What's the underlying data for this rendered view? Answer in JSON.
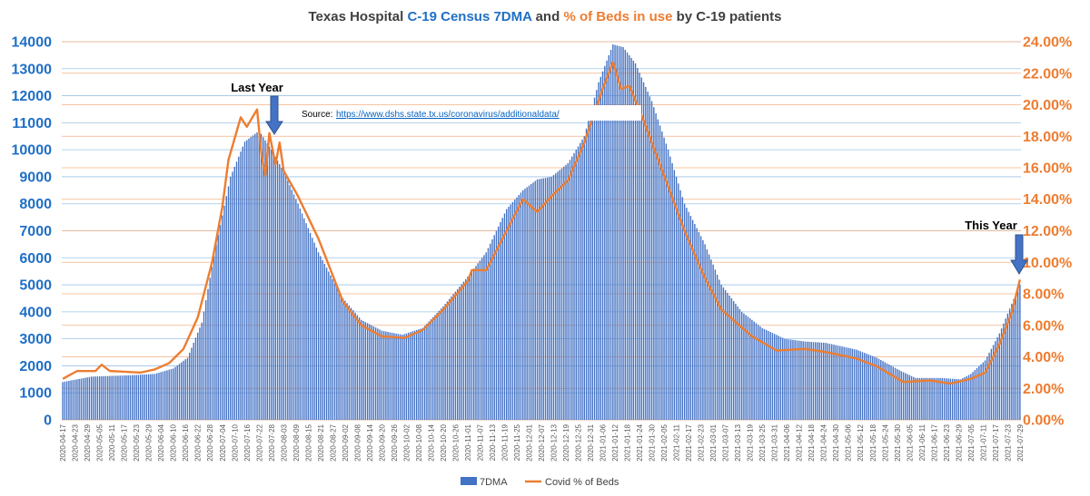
{
  "chart_data": {
    "type": "bar+line",
    "title": {
      "prefix": "Texas Hospital ",
      "series1": "C-19 Census 7DMA",
      "mid": " and ",
      "series2": "% of Beds in use",
      "suffix": " by C-19 patients"
    },
    "source_label": "Source:",
    "source_url": "https://www.dshs.state.tx.us/coronavirus/additionaldata/",
    "annotations": {
      "last_year": "Last Year",
      "this_year": "This Year"
    },
    "y_left": {
      "min": 0,
      "max": 14000,
      "step": 1000,
      "ticks": [
        "0",
        "1000",
        "2000",
        "3000",
        "4000",
        "5000",
        "6000",
        "7000",
        "8000",
        "9000",
        "10000",
        "11000",
        "12000",
        "13000",
        "14000"
      ]
    },
    "y_right": {
      "min": 0,
      "max": 24,
      "step": 2,
      "ticks": [
        "0.00%",
        "2.00%",
        "4.00%",
        "6.00%",
        "8.00%",
        "10.00%",
        "12.00%",
        "14.00%",
        "16.00%",
        "18.00%",
        "20.00%",
        "22.00%",
        "24.00%"
      ]
    },
    "x_start_date": "2020-04-17",
    "x_end_date": "2021-07-29",
    "x_tick_labels": [
      "2020-04-17",
      "2020-04-23",
      "2020-04-29",
      "2020-05-05",
      "2020-05-11",
      "2020-05-17",
      "2020-05-23",
      "2020-05-29",
      "2020-06-04",
      "2020-06-10",
      "2020-06-16",
      "2020-06-22",
      "2020-06-28",
      "2020-07-04",
      "2020-07-10",
      "2020-07-16",
      "2020-07-22",
      "2020-07-28",
      "2020-08-03",
      "2020-08-09",
      "2020-08-15",
      "2020-08-21",
      "2020-08-27",
      "2020-09-02",
      "2020-09-08",
      "2020-09-14",
      "2020-09-20",
      "2020-09-26",
      "2020-10-02",
      "2020-10-08",
      "2020-10-14",
      "2020-10-20",
      "2020-10-26",
      "2020-11-01",
      "2020-11-07",
      "2020-11-13",
      "2020-11-19",
      "2020-11-25",
      "2020-12-01",
      "2020-12-07",
      "2020-12-13",
      "2020-12-19",
      "2020-12-25",
      "2020-12-31",
      "2021-01-06",
      "2021-01-12",
      "2021-01-18",
      "2021-01-24",
      "2021-01-30",
      "2021-02-05",
      "2021-02-11",
      "2021-02-17",
      "2021-02-23",
      "2021-03-01",
      "2021-03-07",
      "2021-03-13",
      "2021-03-19",
      "2021-03-25",
      "2021-03-31",
      "2021-04-06",
      "2021-04-12",
      "2021-04-18",
      "2021-04-24",
      "2021-04-30",
      "2021-05-06",
      "2021-05-12",
      "2021-05-18",
      "2021-05-24",
      "2021-05-30",
      "2021-06-05",
      "2021-06-11",
      "2021-06-17",
      "2021-06-23",
      "2021-06-29",
      "2021-07-05",
      "2021-07-11",
      "2021-07-17",
      "2021-07-23",
      "2021-07-29"
    ],
    "series": [
      {
        "name": "7DMA",
        "type": "bar",
        "color": "#4472c4",
        "axis": "left",
        "keyframes": [
          [
            "2020-04-17",
            1400
          ],
          [
            "2020-05-01",
            1600
          ],
          [
            "2020-05-20",
            1650
          ],
          [
            "2020-06-01",
            1700
          ],
          [
            "2020-06-10",
            1900
          ],
          [
            "2020-06-17",
            2300
          ],
          [
            "2020-06-24",
            3600
          ],
          [
            "2020-07-01",
            6500
          ],
          [
            "2020-07-08",
            9000
          ],
          [
            "2020-07-15",
            10300
          ],
          [
            "2020-07-22",
            10700
          ],
          [
            "2020-07-28",
            10000
          ],
          [
            "2020-08-03",
            9200
          ],
          [
            "2020-08-10",
            8000
          ],
          [
            "2020-08-20",
            6200
          ],
          [
            "2020-09-01",
            4500
          ],
          [
            "2020-09-10",
            3700
          ],
          [
            "2020-09-20",
            3300
          ],
          [
            "2020-09-30",
            3150
          ],
          [
            "2020-10-10",
            3400
          ],
          [
            "2020-10-20",
            4200
          ],
          [
            "2020-11-01",
            5300
          ],
          [
            "2020-11-10",
            6200
          ],
          [
            "2020-11-20",
            7800
          ],
          [
            "2020-11-28",
            8500
          ],
          [
            "2020-12-05",
            8900
          ],
          [
            "2020-12-12",
            9000
          ],
          [
            "2020-12-20",
            9500
          ],
          [
            "2020-12-28",
            10500
          ],
          [
            "2021-01-04",
            12500
          ],
          [
            "2021-01-11",
            13900
          ],
          [
            "2021-01-16",
            13800
          ],
          [
            "2021-01-22",
            13200
          ],
          [
            "2021-01-30",
            11800
          ],
          [
            "2021-02-07",
            10000
          ],
          [
            "2021-02-15",
            8000
          ],
          [
            "2021-02-25",
            6500
          ],
          [
            "2021-03-05",
            5000
          ],
          [
            "2021-03-15",
            4000
          ],
          [
            "2021-03-25",
            3400
          ],
          [
            "2021-04-05",
            3000
          ],
          [
            "2021-04-15",
            2900
          ],
          [
            "2021-04-25",
            2850
          ],
          [
            "2021-05-10",
            2600
          ],
          [
            "2021-05-20",
            2300
          ],
          [
            "2021-06-01",
            1800
          ],
          [
            "2021-06-08",
            1550
          ],
          [
            "2021-06-20",
            1550
          ],
          [
            "2021-06-30",
            1500
          ],
          [
            "2021-07-05",
            1700
          ],
          [
            "2021-07-12",
            2200
          ],
          [
            "2021-07-19",
            3200
          ],
          [
            "2021-07-25",
            4300
          ],
          [
            "2021-07-29",
            5000
          ]
        ]
      },
      {
        "name": "Covid % of Beds",
        "type": "line",
        "color": "#ed7d31",
        "axis": "right",
        "keyframes": [
          [
            "2020-04-17",
            2.6
          ],
          [
            "2020-04-24",
            3.1
          ],
          [
            "2020-05-03",
            3.1
          ],
          [
            "2020-05-06",
            3.5
          ],
          [
            "2020-05-10",
            3.1
          ],
          [
            "2020-05-25",
            3.0
          ],
          [
            "2020-06-01",
            3.2
          ],
          [
            "2020-06-08",
            3.6
          ],
          [
            "2020-06-15",
            4.5
          ],
          [
            "2020-06-22",
            6.5
          ],
          [
            "2020-06-29",
            10.0
          ],
          [
            "2020-07-04",
            13.5
          ],
          [
            "2020-07-07",
            16.5
          ],
          [
            "2020-07-13",
            19.2
          ],
          [
            "2020-07-16",
            18.6
          ],
          [
            "2020-07-21",
            19.7
          ],
          [
            "2020-07-23",
            17.0
          ],
          [
            "2020-07-25",
            15.5
          ],
          [
            "2020-07-27",
            18.2
          ],
          [
            "2020-07-30",
            16.2
          ],
          [
            "2020-08-01",
            17.6
          ],
          [
            "2020-08-03",
            15.8
          ],
          [
            "2020-08-10",
            14.2
          ],
          [
            "2020-08-20",
            11.5
          ],
          [
            "2020-09-01",
            7.5
          ],
          [
            "2020-09-10",
            6.0
          ],
          [
            "2020-09-20",
            5.3
          ],
          [
            "2020-10-01",
            5.2
          ],
          [
            "2020-10-10",
            5.7
          ],
          [
            "2020-10-20",
            7.0
          ],
          [
            "2020-11-01",
            8.8
          ],
          [
            "2020-11-03",
            9.5
          ],
          [
            "2020-11-10",
            9.5
          ],
          [
            "2020-11-20",
            12.0
          ],
          [
            "2020-11-28",
            14.0
          ],
          [
            "2020-12-05",
            13.2
          ],
          [
            "2020-12-12",
            14.2
          ],
          [
            "2020-12-20",
            15.2
          ],
          [
            "2020-12-28",
            17.6
          ],
          [
            "2021-01-06",
            21.0
          ],
          [
            "2021-01-11",
            22.7
          ],
          [
            "2021-01-15",
            21.0
          ],
          [
            "2021-01-19",
            21.2
          ],
          [
            "2021-01-26",
            19.0
          ],
          [
            "2021-02-05",
            15.5
          ],
          [
            "2021-02-15",
            12.0
          ],
          [
            "2021-02-25",
            9.0
          ],
          [
            "2021-03-05",
            7.0
          ],
          [
            "2021-03-20",
            5.3
          ],
          [
            "2021-04-01",
            4.4
          ],
          [
            "2021-04-15",
            4.5
          ],
          [
            "2021-04-25",
            4.3
          ],
          [
            "2021-05-10",
            3.9
          ],
          [
            "2021-05-20",
            3.4
          ],
          [
            "2021-06-02",
            2.4
          ],
          [
            "2021-06-15",
            2.5
          ],
          [
            "2021-06-25",
            2.3
          ],
          [
            "2021-07-05",
            2.6
          ],
          [
            "2021-07-12",
            3.0
          ],
          [
            "2021-07-19",
            4.8
          ],
          [
            "2021-07-25",
            6.8
          ],
          [
            "2021-07-29",
            8.9
          ]
        ]
      }
    ],
    "legend": [
      {
        "label": "7DMA",
        "color": "#4472c4",
        "marker": "bar"
      },
      {
        "label": "Covid % of Beds",
        "color": "#ed7d31",
        "marker": "line"
      }
    ],
    "legend_position": "bottom",
    "gridlines": {
      "left_axis": "light blue",
      "right_axis": "light orange"
    }
  }
}
